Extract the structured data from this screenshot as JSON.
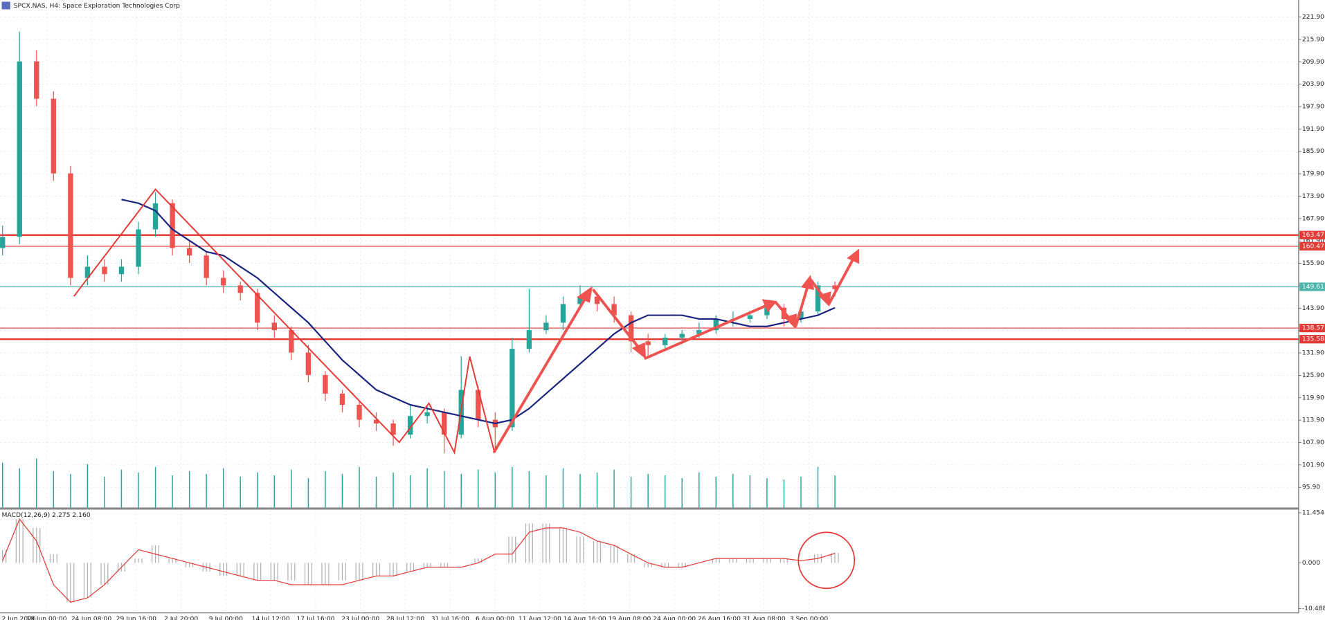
{
  "chart_data": {
    "type": "candlestick",
    "title": "SPCX.NAS, H4:  Space Exploration Technologies Corp",
    "up_color": "#26a69a",
    "down_color": "#ef5350",
    "open": [
      160,
      163,
      210,
      200,
      180,
      152,
      155,
      153,
      155,
      165,
      172,
      160,
      158,
      152,
      150,
      148,
      140,
      138,
      132,
      126,
      121,
      118,
      114,
      113,
      110,
      115,
      116,
      110,
      122,
      114,
      112,
      133,
      138,
      140,
      145,
      147,
      145,
      142,
      135,
      134,
      136,
      137,
      138,
      141,
      141,
      142,
      144,
      141,
      143,
      150
    ],
    "high": [
      166,
      218,
      213,
      202,
      182,
      158,
      157,
      157,
      167,
      175,
      173,
      162,
      159,
      154,
      151,
      149,
      142,
      139,
      134,
      127,
      122,
      119,
      116,
      114,
      118,
      118,
      117,
      131,
      123,
      116,
      136,
      149,
      142,
      147,
      150,
      148,
      147,
      143,
      137,
      137,
      138,
      140,
      142,
      143,
      143,
      146,
      145,
      144,
      151,
      151
    ],
    "low": [
      158,
      161,
      198,
      178,
      150,
      150,
      151,
      151,
      153,
      163,
      158,
      156,
      150,
      148,
      146,
      138,
      136,
      130,
      124,
      119,
      116,
      112,
      111,
      107,
      109,
      113,
      105,
      109,
      112,
      106,
      111,
      132,
      137,
      138,
      144,
      143,
      140,
      132,
      131,
      133,
      135,
      136,
      137,
      139,
      140,
      141,
      139,
      140,
      142,
      147
    ],
    "close": [
      163,
      210,
      200,
      180,
      152,
      155,
      153,
      155,
      165,
      172,
      160,
      158,
      152,
      150,
      148,
      140,
      138,
      132,
      126,
      121,
      118,
      114,
      113,
      110,
      115,
      116,
      110,
      122,
      114,
      112,
      133,
      138,
      140,
      145,
      147,
      145,
      142,
      135,
      134,
      136,
      137,
      138,
      141,
      141,
      142,
      144,
      141,
      143,
      150,
      149
    ],
    "ma": {
      "color": "#1a237e",
      "values": [
        null,
        null,
        null,
        null,
        null,
        null,
        null,
        173,
        172,
        170,
        165,
        162,
        159,
        158,
        155,
        152,
        148,
        144,
        140,
        135,
        130,
        126,
        122,
        120,
        118,
        117,
        116,
        115,
        114,
        113,
        114,
        117,
        121,
        125,
        129,
        133,
        137,
        140,
        142,
        142,
        142,
        141,
        141,
        140,
        139,
        139,
        140,
        141,
        142,
        144
      ]
    },
    "volume": {
      "color": "#26a69a",
      "values": [
        3200,
        2800,
        3500,
        2600,
        2400,
        3100,
        2200,
        2700,
        2500,
        2900,
        2300,
        2600,
        2400,
        2800,
        2200,
        2500,
        2300,
        2700,
        2100,
        2600,
        2400,
        2900,
        2200,
        2500,
        2300,
        2800,
        2600,
        2400,
        2700,
        2500,
        2900,
        2600,
        2300,
        2800,
        2400,
        2500,
        2700,
        2200,
        2400,
        2300,
        2100,
        2500,
        2200,
        2400,
        2300,
        2100,
        2000,
        2200,
        2900,
        2300
      ]
    },
    "levels": [
      {
        "value": 163.47,
        "label": "163.47",
        "color": "#e53935",
        "thick": true
      },
      {
        "value": 160.47,
        "label": "160.47",
        "color": "#e53935",
        "thick": false
      },
      {
        "value": 149.61,
        "label": "149.61",
        "color": "#4db6ac",
        "thick": false
      },
      {
        "value": 138.57,
        "label": "138.57",
        "color": "#e53935",
        "thick": false
      },
      {
        "value": 135.58,
        "label": "135.58",
        "color": "#e53935",
        "thick": true
      }
    ],
    "ylim": [
      90.44,
      226.45
    ],
    "yticks": [
      {
        "value": 221.9,
        "label": "221.90"
      },
      {
        "value": 215.9,
        "label": "215.90"
      },
      {
        "value": 209.9,
        "label": "209.90"
      },
      {
        "value": 203.9,
        "label": "203.90"
      },
      {
        "value": 197.9,
        "label": "197.90"
      },
      {
        "value": 191.9,
        "label": "191.90"
      },
      {
        "value": 185.9,
        "label": "185.90"
      },
      {
        "value": 179.9,
        "label": "179.90"
      },
      {
        "value": 173.9,
        "label": "173.90"
      },
      {
        "value": 167.9,
        "label": "167.90"
      },
      {
        "value": 161.9,
        "label": "161.90"
      },
      {
        "value": 155.9,
        "label": "155.90"
      },
      {
        "value": 149.9,
        "label": "149.90"
      },
      {
        "value": 143.9,
        "label": "143.90"
      },
      {
        "value": 137.9,
        "label": "137.90"
      },
      {
        "value": 131.9,
        "label": "131.90"
      },
      {
        "value": 125.9,
        "label": "125.90"
      },
      {
        "value": 119.9,
        "label": "119.90"
      },
      {
        "value": 113.9,
        "label": "113.90"
      },
      {
        "value": 107.9,
        "label": "107.90"
      },
      {
        "value": 101.9,
        "label": "101.90"
      },
      {
        "value": 95.9,
        "label": "95.90"
      }
    ],
    "x_labels": [
      "2 Jun 2026",
      "18 Jun 00:00",
      "24 Jun 08:00",
      "29 Jun 16:00",
      "2 Jul 20:00",
      "9 Jul 00:00",
      "14 Jul 12:00",
      "17 Jul 16:00",
      "23 Jul 00:00",
      "28 Jul 12:00",
      "31 Jul 16:00",
      "6 Aug 00:00",
      "11 Aug 12:00",
      "14 Aug 16:00",
      "19 Aug 08:00",
      "24 Aug 00:00",
      "26 Aug 16:00",
      "31 Aug 08:00",
      "3 Sep 00:00"
    ],
    "grid": true,
    "macd": {
      "title": "MACD(12,26,9) 2.275 2.160",
      "ylim": [
        -11.46,
        12.23
      ],
      "yticks": [
        {
          "value": 11.454,
          "label": "11.454"
        },
        {
          "value": 0,
          "label": "0.000"
        },
        {
          "value": -10.488,
          "label": "-10.488"
        }
      ],
      "histogram": {
        "color": "#b0b0b0",
        "values": [
          3,
          10,
          8,
          2,
          -9,
          -8,
          -5,
          -2,
          1,
          4,
          1,
          -1,
          -2,
          -3,
          -3,
          -4,
          -4,
          -4,
          -5,
          -5,
          -4,
          -4,
          -3,
          -3,
          -2,
          -1,
          -1,
          0,
          1,
          0,
          6,
          9,
          9,
          8,
          6,
          5,
          4,
          2,
          -1,
          -1,
          -1,
          0,
          1,
          1,
          1,
          1,
          1,
          0,
          2,
          2.275
        ]
      },
      "signal": {
        "color": "#e53935",
        "values": [
          0.5,
          10,
          5,
          -5,
          -9,
          -8,
          -5,
          -1,
          3,
          2,
          1,
          0,
          -1,
          -2,
          -3,
          -4,
          -4,
          -5,
          -5,
          -5,
          -5,
          -4,
          -3,
          -3,
          -2,
          -1,
          -1,
          -1,
          0,
          2,
          2,
          7,
          8,
          8,
          7,
          5,
          4,
          2,
          0,
          -1,
          -1,
          0,
          1,
          1,
          1,
          1,
          1,
          0.5,
          1,
          2.16
        ]
      }
    }
  }
}
